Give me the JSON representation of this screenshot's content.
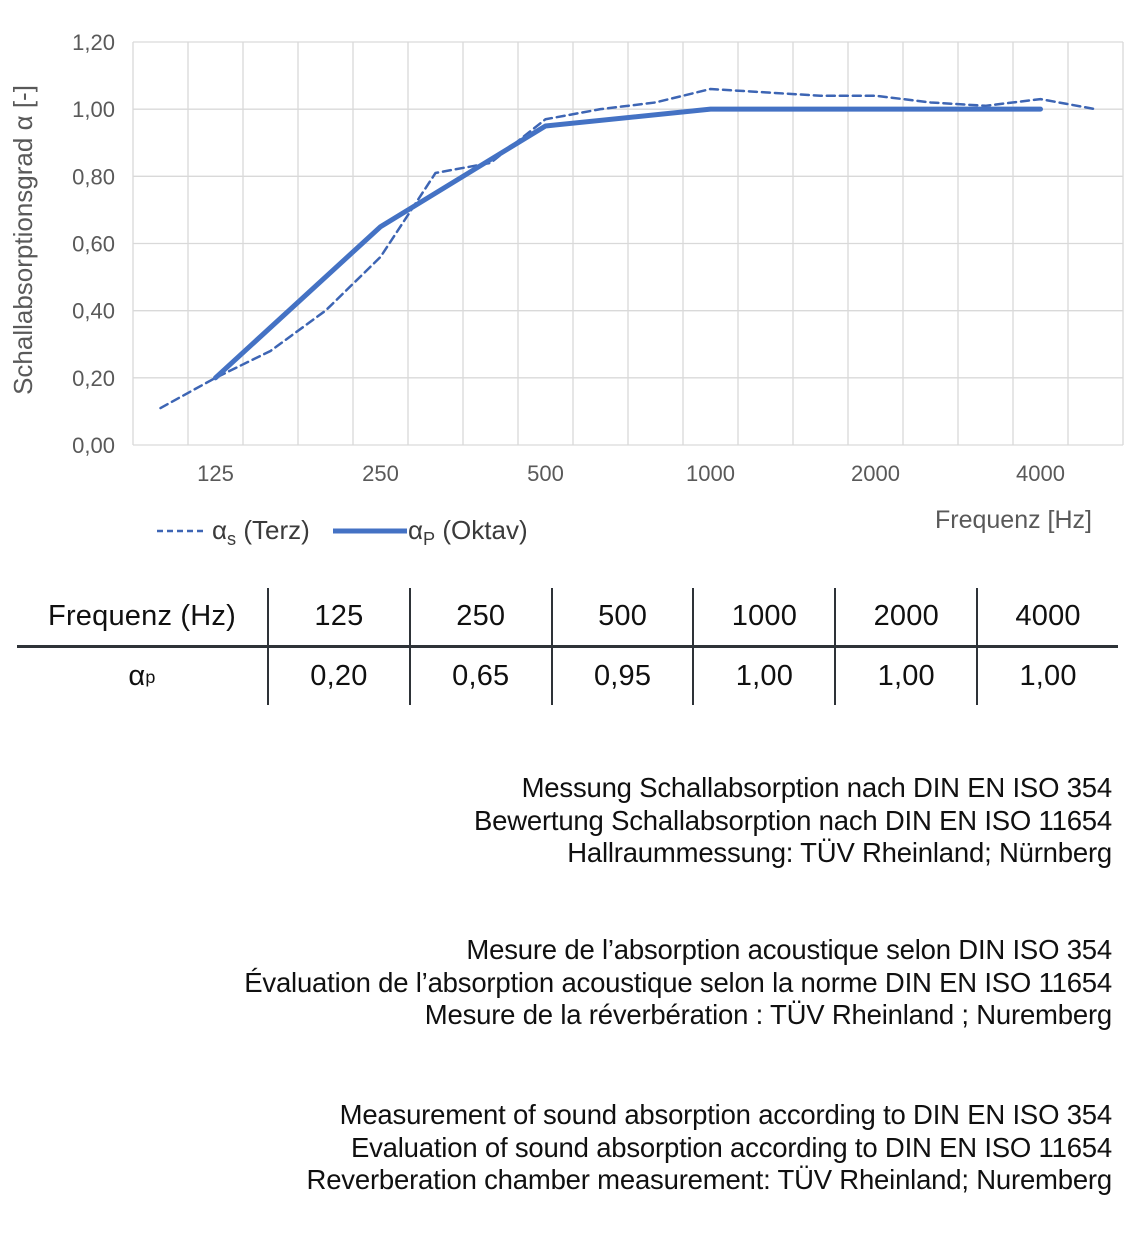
{
  "page": {
    "background": "#ffffff"
  },
  "chart_data": {
    "type": "line",
    "title": "",
    "ylabel": "Schallabsorptionsgrad α [-]",
    "xlabel": "Frequenz [Hz]",
    "ylim": [
      0,
      1.2
    ],
    "grid": true,
    "legend_position": "bottom-left",
    "y_tick_labels": [
      "0,00",
      "0,20",
      "0,40",
      "0,60",
      "0,80",
      "1,00",
      "1,20"
    ],
    "x_categories": [
      100,
      125,
      160,
      200,
      250,
      315,
      400,
      500,
      630,
      800,
      1000,
      1250,
      1600,
      2000,
      2500,
      3150,
      4000,
      5000
    ],
    "x_tick_categories": [
      125,
      250,
      500,
      1000,
      2000,
      4000
    ],
    "x_tick_labels": [
      "125",
      "250",
      "500",
      "1000",
      "2000",
      "4000"
    ],
    "colors": {
      "dashed_line": "#3d65b4",
      "solid_line": "#4472c4",
      "grid": "#d9d9d9",
      "tick_text": "#595959",
      "axis_title_text": "#595959",
      "legend_text": "#3b3b3b"
    },
    "series": [
      {
        "name": "α_s (Terz)",
        "line_style": "dashed",
        "x": [
          100,
          125,
          160,
          200,
          250,
          315,
          400,
          500,
          630,
          800,
          1000,
          1250,
          1600,
          2000,
          2500,
          3150,
          4000,
          5000
        ],
        "values": [
          0.11,
          0.2,
          0.28,
          0.4,
          0.56,
          0.81,
          0.84,
          0.97,
          1.0,
          1.02,
          1.06,
          1.05,
          1.04,
          1.04,
          1.02,
          1.01,
          1.03,
          1.0
        ]
      },
      {
        "name": "α_P (Oktav)",
        "line_style": "solid",
        "x": [
          125,
          250,
          500,
          1000,
          2000,
          4000
        ],
        "values": [
          0.2,
          0.65,
          0.95,
          1.0,
          1.0,
          1.0
        ]
      }
    ]
  },
  "table": {
    "header": [
      "Frequenz (Hz)",
      "125",
      "250",
      "500",
      "1000",
      "2000",
      "4000"
    ],
    "row_label": "α_p",
    "values": [
      "0,20",
      "0,65",
      "0,95",
      "1,00",
      "1,00",
      "1,00"
    ]
  },
  "notes": {
    "de": [
      "Messung Schallabsorption nach DIN EN ISO 354",
      "Bewertung Schallabsorption nach DIN EN ISO 11654",
      "Hallraummessung: TÜV Rheinland; Nürnberg"
    ],
    "fr": [
      "Mesure de l’absorption acoustique selon DIN ISO 354",
      "Évaluation de l’absorption acoustique selon la norme DIN EN ISO 11654",
      "Mesure de la réverbération : TÜV Rheinland ; Nuremberg"
    ],
    "en": [
      "Measurement of sound absorption according to DIN EN ISO 354",
      "Evaluation of sound absorption according to DIN EN ISO 11654",
      "Reverberation chamber measurement: TÜV Rheinland; Nuremberg"
    ]
  }
}
